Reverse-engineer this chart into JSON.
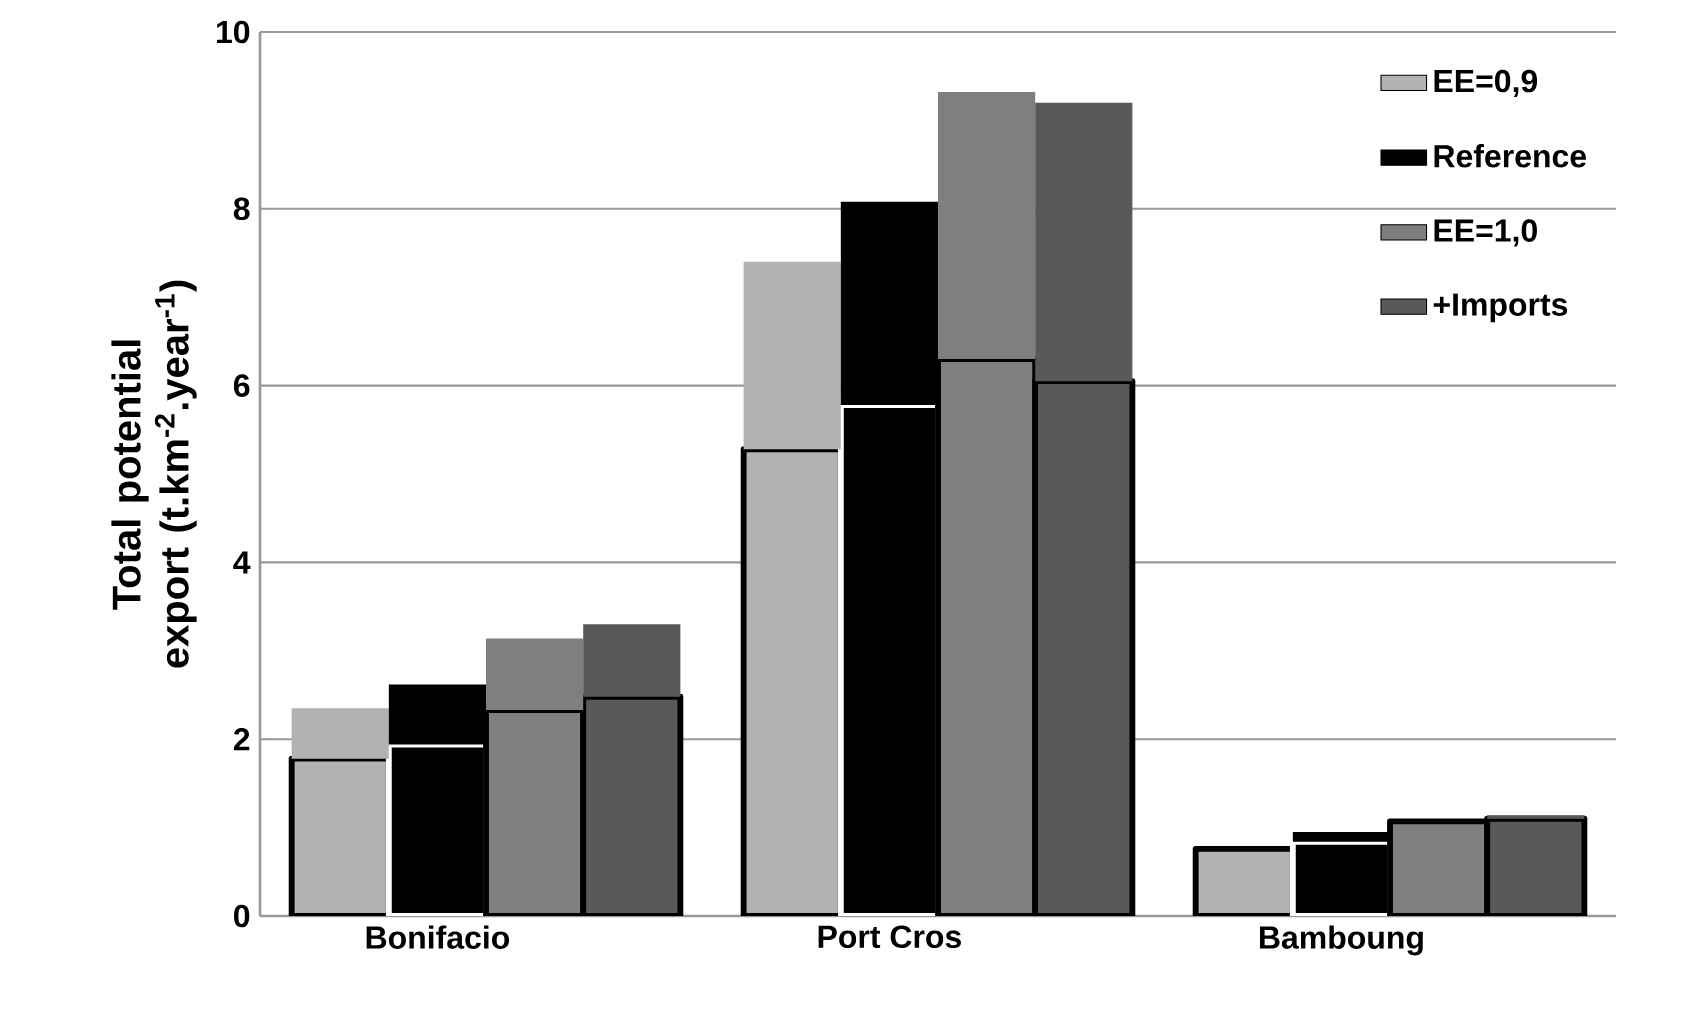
{
  "chart_data": {
    "type": "bar",
    "stacked": true,
    "ylabel": "Total potential export (t.km$^{-2}$.year$^{-1}$)",
    "categories": [
      null,
      "Bonifacio",
      null,
      null,
      null,
      "Port Cros",
      null,
      null,
      null,
      "Bamboung",
      null,
      null
    ],
    "ylim": [
      0,
      10
    ],
    "yticks": [
      0,
      2,
      4,
      6,
      8,
      10
    ],
    "grid": "y",
    "legend": "top right",
    "series": [
      {
        "color": "#b2b2b2",
        "values": [
          1.78,
          null,
          null,
          null,
          5.28,
          null,
          null,
          null,
          0.76,
          null,
          null,
          null
        ]
      },
      {
        "color": "#000000",
        "values": [
          null,
          1.94,
          null,
          null,
          null,
          5.78,
          null,
          null,
          null,
          0.84,
          null,
          null
        ]
      },
      {
        "color": "#7f7f7f",
        "values": [
          null,
          null,
          2.33,
          null,
          null,
          null,
          6.3,
          null,
          null,
          null,
          1.07,
          null
        ]
      },
      {
        "color": "#595959",
        "values": [
          null,
          null,
          null,
          2.48,
          null,
          null,
          null,
          6.05,
          null,
          null,
          null,
          1.1
        ]
      },
      {
        "name": "EE=0,9",
        "color": "#b2b2b2",
        "values": [
          0.57,
          null,
          null,
          null,
          2.12,
          null,
          null,
          null,
          0,
          null,
          null,
          null
        ]
      },
      {
        "name": "Reference",
        "color": "#000000",
        "values": [
          null,
          0.68,
          null,
          null,
          null,
          2.3,
          null,
          null,
          null,
          0.11,
          null,
          null
        ]
      },
      {
        "name": "EE=1,0",
        "color": "#7f7f7f",
        "values": [
          null,
          null,
          0.81,
          null,
          null,
          null,
          3.02,
          null,
          null,
          null,
          0,
          null
        ]
      },
      {
        "name": "+Imports",
        "color": "#595959",
        "values": [
          null,
          null,
          null,
          0.82,
          null,
          null,
          null,
          3.15,
          null,
          null,
          null,
          0.04
        ]
      }
    ]
  }
}
